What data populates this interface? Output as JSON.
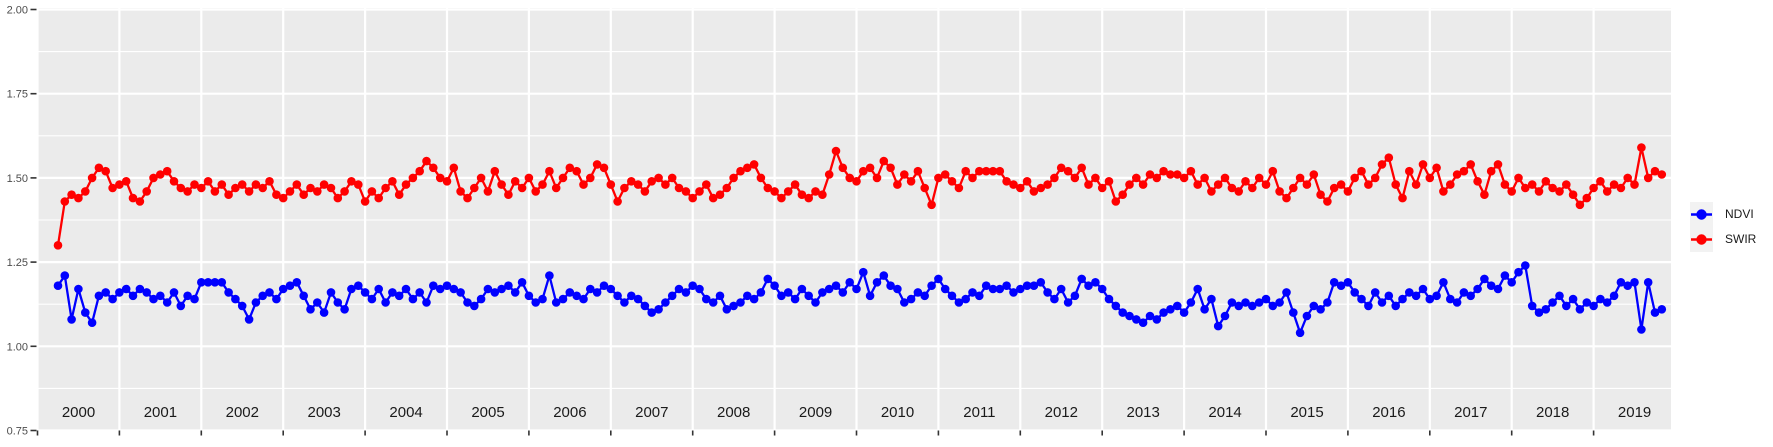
{
  "chart_data": {
    "type": "line",
    "title": "",
    "markers": true,
    "grid": true,
    "legend_position": "right",
    "x_start": 2000.25,
    "x_step": 0.0833333,
    "n_points": 236,
    "x_axis": {
      "label": "",
      "tick_years": [
        2000,
        2001,
        2002,
        2003,
        2004,
        2005,
        2006,
        2007,
        2008,
        2009,
        2010,
        2011,
        2012,
        2013,
        2014,
        2015,
        2016,
        2017,
        2018,
        2019
      ],
      "range": [
        2000.0,
        2019.94
      ]
    },
    "y_axis": {
      "label": "",
      "tick_values": [
        2.0,
        1.75,
        1.5,
        1.25,
        1.0,
        0.75
      ],
      "tick_labels": [
        "2.00",
        "1.75",
        "1.50",
        "1.25",
        "1.00",
        "0.75"
      ],
      "minor_tick_values": [
        1.875,
        1.625,
        1.375,
        1.125,
        0.875
      ],
      "range": [
        0.75,
        2.0
      ]
    },
    "series": [
      {
        "name": "NDVI",
        "color": "#0000FF",
        "values": [
          1.18,
          1.21,
          1.08,
          1.17,
          1.1,
          1.07,
          1.15,
          1.16,
          1.14,
          1.16,
          1.17,
          1.15,
          1.17,
          1.16,
          1.14,
          1.15,
          1.13,
          1.16,
          1.12,
          1.15,
          1.14,
          1.19,
          1.19,
          1.19,
          1.19,
          1.16,
          1.14,
          1.12,
          1.08,
          1.13,
          1.15,
          1.16,
          1.14,
          1.17,
          1.18,
          1.19,
          1.15,
          1.11,
          1.13,
          1.1,
          1.16,
          1.13,
          1.11,
          1.17,
          1.18,
          1.16,
          1.14,
          1.17,
          1.13,
          1.16,
          1.15,
          1.17,
          1.14,
          1.16,
          1.13,
          1.18,
          1.17,
          1.18,
          1.17,
          1.16,
          1.13,
          1.12,
          1.14,
          1.17,
          1.16,
          1.17,
          1.18,
          1.16,
          1.19,
          1.15,
          1.13,
          1.14,
          1.21,
          1.13,
          1.14,
          1.16,
          1.15,
          1.14,
          1.17,
          1.16,
          1.18,
          1.17,
          1.15,
          1.13,
          1.15,
          1.14,
          1.12,
          1.1,
          1.11,
          1.13,
          1.15,
          1.17,
          1.16,
          1.18,
          1.17,
          1.14,
          1.13,
          1.15,
          1.11,
          1.12,
          1.13,
          1.15,
          1.14,
          1.16,
          1.2,
          1.18,
          1.15,
          1.16,
          1.14,
          1.17,
          1.15,
          1.13,
          1.16,
          1.17,
          1.18,
          1.16,
          1.19,
          1.17,
          1.22,
          1.15,
          1.19,
          1.21,
          1.18,
          1.17,
          1.13,
          1.14,
          1.16,
          1.15,
          1.18,
          1.2,
          1.17,
          1.15,
          1.13,
          1.14,
          1.16,
          1.15,
          1.18,
          1.17,
          1.17,
          1.18,
          1.16,
          1.17,
          1.18,
          1.18,
          1.19,
          1.16,
          1.14,
          1.17,
          1.13,
          1.15,
          1.2,
          1.18,
          1.19,
          1.17,
          1.14,
          1.12,
          1.1,
          1.09,
          1.08,
          1.07,
          1.09,
          1.08,
          1.1,
          1.11,
          1.12,
          1.1,
          1.13,
          1.17,
          1.11,
          1.14,
          1.06,
          1.09,
          1.13,
          1.12,
          1.13,
          1.12,
          1.13,
          1.14,
          1.12,
          1.13,
          1.16,
          1.1,
          1.04,
          1.09,
          1.12,
          1.11,
          1.13,
          1.19,
          1.18,
          1.19,
          1.16,
          1.14,
          1.12,
          1.16,
          1.13,
          1.15,
          1.12,
          1.14,
          1.16,
          1.15,
          1.17,
          1.14,
          1.15,
          1.19,
          1.14,
          1.13,
          1.16,
          1.15,
          1.17,
          1.2,
          1.18,
          1.17,
          1.21,
          1.19,
          1.22,
          1.24,
          1.12,
          1.1,
          1.11,
          1.13,
          1.15,
          1.12,
          1.14,
          1.11,
          1.13,
          1.12,
          1.14,
          1.13,
          1.15,
          1.19,
          1.18,
          1.19,
          1.05,
          1.19,
          1.1,
          1.11
        ]
      },
      {
        "name": "SWIR",
        "color": "#FF0000",
        "values": [
          1.3,
          1.43,
          1.45,
          1.44,
          1.46,
          1.5,
          1.53,
          1.52,
          1.47,
          1.48,
          1.49,
          1.44,
          1.43,
          1.46,
          1.5,
          1.51,
          1.52,
          1.49,
          1.47,
          1.46,
          1.48,
          1.47,
          1.49,
          1.46,
          1.48,
          1.45,
          1.47,
          1.48,
          1.46,
          1.48,
          1.47,
          1.49,
          1.45,
          1.44,
          1.46,
          1.48,
          1.45,
          1.47,
          1.46,
          1.48,
          1.47,
          1.44,
          1.46,
          1.49,
          1.48,
          1.43,
          1.46,
          1.44,
          1.47,
          1.49,
          1.45,
          1.48,
          1.5,
          1.52,
          1.55,
          1.53,
          1.5,
          1.49,
          1.53,
          1.46,
          1.44,
          1.47,
          1.5,
          1.46,
          1.52,
          1.48,
          1.45,
          1.49,
          1.47,
          1.5,
          1.46,
          1.48,
          1.52,
          1.47,
          1.5,
          1.53,
          1.52,
          1.48,
          1.5,
          1.54,
          1.53,
          1.48,
          1.43,
          1.47,
          1.49,
          1.48,
          1.46,
          1.49,
          1.5,
          1.48,
          1.5,
          1.47,
          1.46,
          1.44,
          1.46,
          1.48,
          1.44,
          1.45,
          1.47,
          1.5,
          1.52,
          1.53,
          1.54,
          1.5,
          1.47,
          1.46,
          1.44,
          1.46,
          1.48,
          1.45,
          1.44,
          1.46,
          1.45,
          1.51,
          1.58,
          1.53,
          1.5,
          1.49,
          1.52,
          1.53,
          1.5,
          1.55,
          1.53,
          1.48,
          1.51,
          1.49,
          1.52,
          1.47,
          1.42,
          1.5,
          1.51,
          1.49,
          1.47,
          1.52,
          1.5,
          1.52,
          1.52,
          1.52,
          1.52,
          1.49,
          1.48,
          1.47,
          1.49,
          1.46,
          1.47,
          1.48,
          1.5,
          1.53,
          1.52,
          1.5,
          1.53,
          1.48,
          1.5,
          1.47,
          1.49,
          1.43,
          1.45,
          1.48,
          1.5,
          1.48,
          1.51,
          1.5,
          1.52,
          1.51,
          1.51,
          1.5,
          1.52,
          1.48,
          1.5,
          1.46,
          1.48,
          1.5,
          1.47,
          1.46,
          1.49,
          1.47,
          1.5,
          1.48,
          1.52,
          1.46,
          1.44,
          1.47,
          1.5,
          1.48,
          1.51,
          1.45,
          1.43,
          1.47,
          1.48,
          1.46,
          1.5,
          1.52,
          1.48,
          1.5,
          1.54,
          1.56,
          1.48,
          1.44,
          1.52,
          1.48,
          1.54,
          1.5,
          1.53,
          1.46,
          1.48,
          1.51,
          1.52,
          1.54,
          1.49,
          1.45,
          1.52,
          1.54,
          1.48,
          1.46,
          1.5,
          1.47,
          1.48,
          1.46,
          1.49,
          1.47,
          1.46,
          1.48,
          1.45,
          1.42,
          1.44,
          1.47,
          1.49,
          1.46,
          1.48,
          1.47,
          1.5,
          1.48,
          1.59,
          1.5,
          1.52,
          1.51
        ]
      }
    ]
  },
  "legend": {
    "entries": [
      {
        "label": "NDVI",
        "color": "#0000FF"
      },
      {
        "label": "SWIR",
        "color": "#FF0000"
      }
    ]
  },
  "style": {
    "background": "#FFFFFF",
    "panel_bg": "#EBEBEB",
    "grid_color": "#FFFFFF",
    "axis_text_color": "#4D4D4D",
    "year_text_color": "#1A1A1A",
    "tick_color": "#333333",
    "legend_key_bg": "#F2F2F2"
  }
}
